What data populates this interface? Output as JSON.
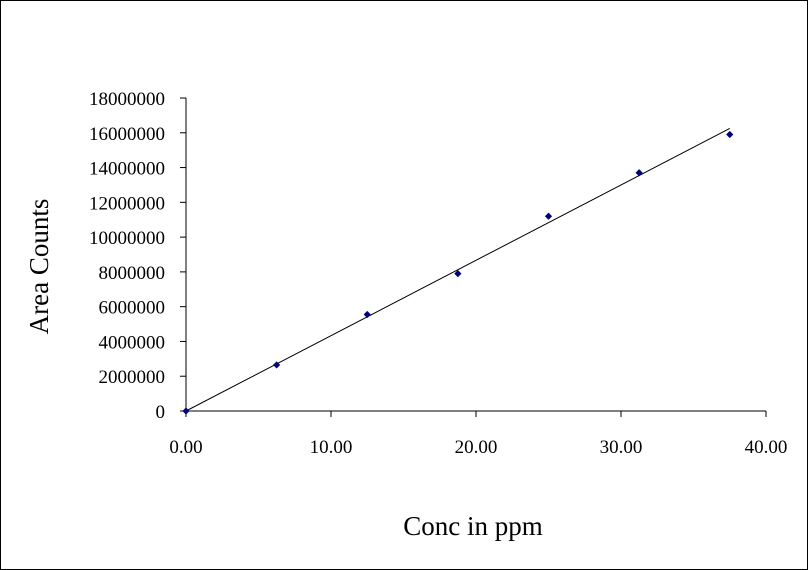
{
  "chart_data": {
    "type": "scatter",
    "title": "",
    "xlabel": "Conc in ppm",
    "ylabel": "Area Counts",
    "xlim": [
      0,
      40
    ],
    "ylim": [
      0,
      18000000
    ],
    "x_ticks": [
      0,
      10,
      20,
      30,
      40
    ],
    "x_tick_labels": [
      "0.00",
      "10.00",
      "20.00",
      "30.00",
      "40.00"
    ],
    "y_ticks": [
      0,
      2000000,
      4000000,
      6000000,
      8000000,
      10000000,
      12000000,
      14000000,
      16000000,
      18000000
    ],
    "y_tick_labels": [
      "0",
      "2000000",
      "4000000",
      "6000000",
      "8000000",
      "10000000",
      "12000000",
      "14000000",
      "16000000",
      "18000000"
    ],
    "grid": false,
    "legend": "none",
    "series": [
      {
        "x": [
          0,
          6.25,
          12.5,
          18.75,
          25.0,
          31.25,
          37.5
        ],
        "y": [
          0,
          2650000,
          5550000,
          7900000,
          11200000,
          13700000,
          15900000
        ],
        "marker": "diamond",
        "color": "#000080"
      }
    ],
    "trendline": {
      "type": "linear",
      "x": [
        0,
        37.5
      ],
      "y": [
        0,
        16250000
      ],
      "color": "#000000"
    }
  }
}
